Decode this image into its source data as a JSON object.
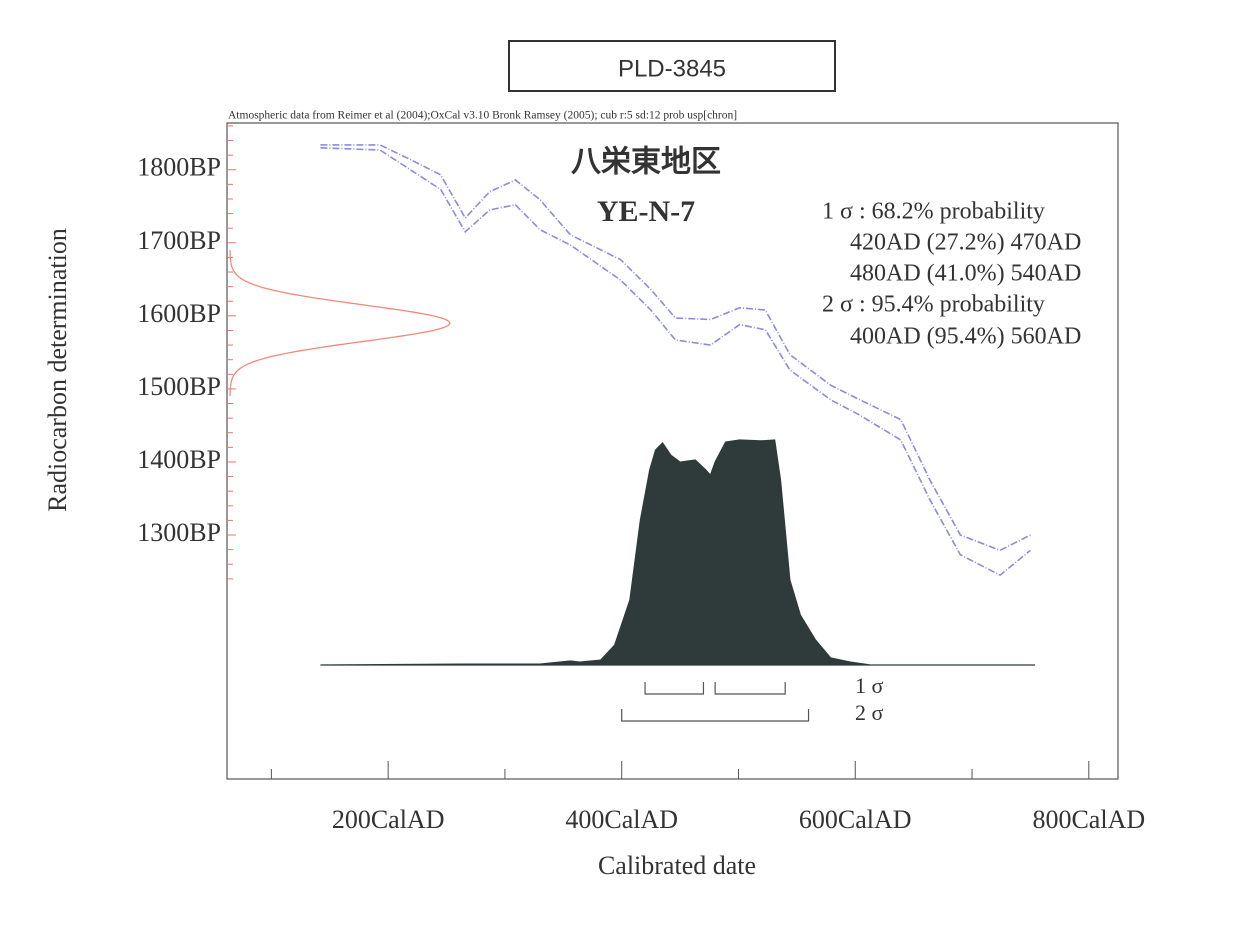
{
  "chart_data": {
    "type": "calibration",
    "header": "PLD-3845",
    "subtitle": "Atmospheric data from Reimer et al (2004);OxCal v3.10 Bronk Ramsey (2005); cub r:5 sd:12 prob usp[chron]",
    "title": "八栄東地区",
    "sample": "YE-N-7",
    "xlabel": "Calibrated date",
    "ylabel": "Radiocarbon determination",
    "xlim": [
      62,
      825
    ],
    "ylim": [
      966,
      1864
    ],
    "xticks": [
      {
        "value": 200,
        "label": "200CalAD"
      },
      {
        "value": 400,
        "label": "400CalAD"
      },
      {
        "value": 600,
        "label": "600CalAD"
      },
      {
        "value": 800,
        "label": "800CalAD"
      }
    ],
    "xminorticks": [
      100,
      300,
      500,
      700
    ],
    "yticks": [
      {
        "value": 1800,
        "label": "1800BP"
      },
      {
        "value": 1700,
        "label": "1700BP"
      },
      {
        "value": 1600,
        "label": "1600BP"
      },
      {
        "value": 1500,
        "label": "1500BP"
      },
      {
        "value": 1400,
        "label": "1400BP"
      },
      {
        "value": 1300,
        "label": "1300BP"
      }
    ],
    "yminorticks": [
      1240,
      1260,
      1280,
      1320,
      1340,
      1360,
      1380,
      1420,
      1440,
      1460,
      1480,
      1520,
      1540,
      1560,
      1580,
      1620,
      1640,
      1660,
      1680,
      1720,
      1740,
      1760,
      1780,
      1820,
      1840,
      1860
    ],
    "calibration_curve": {
      "color": "#8c8cdc",
      "x": [
        142,
        193,
        219,
        245,
        266,
        287,
        309,
        330,
        356,
        399,
        425,
        446,
        476,
        501,
        523,
        544,
        579,
        604,
        639,
        664,
        690,
        724,
        750
      ],
      "upper": [
        1834,
        1834,
        1814,
        1793,
        1734,
        1770,
        1786,
        1759,
        1711,
        1677,
        1636,
        1597,
        1595,
        1611,
        1608,
        1547,
        1505,
        1485,
        1458,
        1375,
        1300,
        1279,
        1300
      ],
      "lower": [
        1830,
        1827,
        1800,
        1773,
        1715,
        1745,
        1752,
        1718,
        1697,
        1649,
        1608,
        1567,
        1560,
        1588,
        1581,
        1526,
        1485,
        1464,
        1430,
        1348,
        1273,
        1245,
        1279
      ]
    },
    "radiocarbon_distribution": {
      "color": "#f08a78",
      "mean": 1590,
      "sd": 25
    },
    "probability": {
      "color": "#2f3b3a",
      "x": [
        142,
        262,
        330,
        356,
        364,
        382,
        394,
        407,
        416,
        424,
        429,
        435,
        442,
        450,
        463,
        472,
        476,
        480,
        489,
        501,
        519,
        531,
        536,
        544,
        553,
        566,
        579,
        596,
        613,
        754
      ],
      "values": [
        0,
        0.004,
        0.004,
        0.018,
        0.013,
        0.022,
        0.089,
        0.289,
        0.644,
        0.867,
        0.956,
        0.987,
        0.933,
        0.902,
        0.911,
        0.867,
        0.844,
        0.902,
        0.991,
        1,
        0.996,
        1,
        0.822,
        0.378,
        0.222,
        0.111,
        0.031,
        0.013,
        0,
        0
      ]
    },
    "sigma_ranges": [
      {
        "name": "1 σ",
        "label": "1 σ : 68.2% probability",
        "ranges": [
          {
            "from": 420,
            "to": 470,
            "label": "420AD (27.2%) 470AD"
          },
          {
            "from": 480,
            "to": 540,
            "label": "480AD (41.0%) 540AD"
          }
        ]
      },
      {
        "name": "2 σ",
        "label": "2 σ : 95.4% probability",
        "ranges": [
          {
            "from": 400,
            "to": 560,
            "label": "400AD (95.4%) 560AD"
          }
        ]
      }
    ]
  }
}
